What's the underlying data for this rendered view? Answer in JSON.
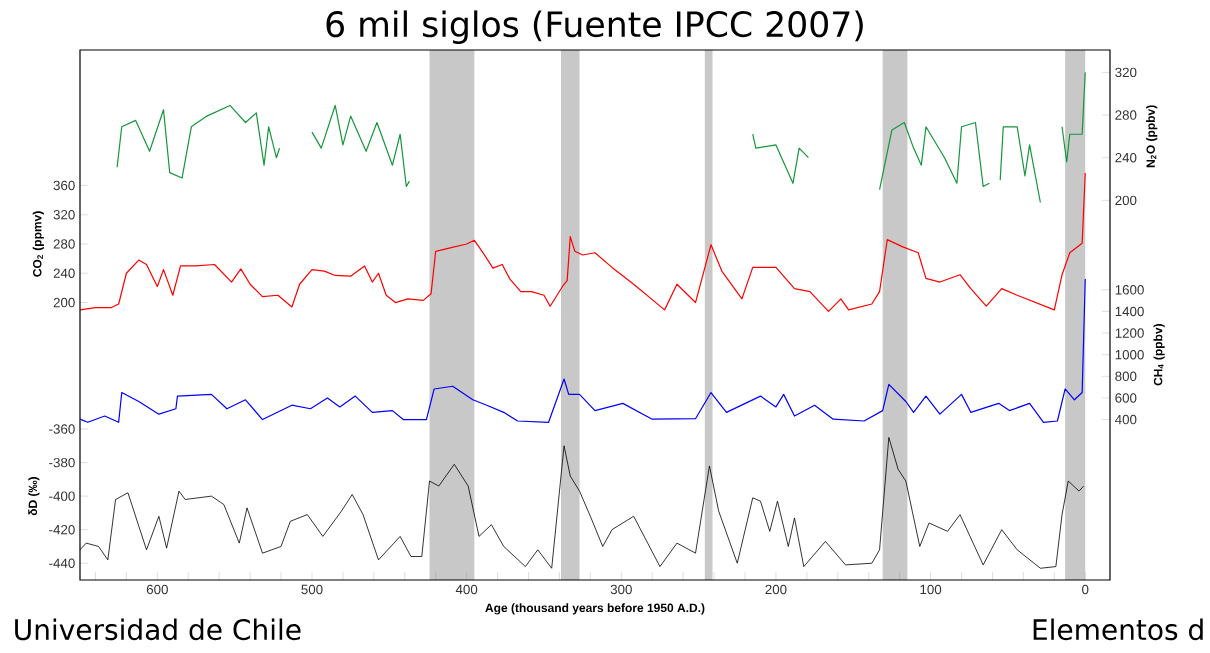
{
  "chart_data": [
    {
      "type": "line",
      "title": "6 mil siglos (Fuente IPCC 2007)",
      "y2label": "N$_{2}$O (ppbv)",
      "xlim": [
        650,
        -16
      ],
      "y2lim": [
        -156,
        341
      ],
      "y2ticks": [
        200,
        240,
        280,
        320
      ],
      "tick_labels": "y",
      "bands": [
        {
          "axis": "x",
          "from": 424,
          "to": 395,
          "color": "#c8c8c8"
        },
        {
          "axis": "x",
          "from": 339,
          "to": 327,
          "color": "#c8c8c8"
        },
        {
          "axis": "x",
          "from": 246,
          "to": 241,
          "color": "#c8c8c8"
        },
        {
          "axis": "x",
          "from": 131,
          "to": 115,
          "color": "#c8c8c8"
        },
        {
          "axis": "x",
          "from": 13,
          "to": 0,
          "color": "#c8c8c8"
        }
      ],
      "series": [
        {
          "color": "#15973c",
          "axis": "y2",
          "x": [
            626,
            623,
            614,
            605,
            596,
            592,
            584,
            578,
            568,
            553,
            543,
            536,
            531,
            528,
            523,
            521,
            510,
            500,
            494,
            485,
            480,
            475,
            465,
            458,
            448,
            443,
            439,
            437,
            300,
            215,
            213,
            200,
            189,
            185,
            179,
            150,
            133,
            125,
            117,
            111,
            106,
            103,
            91,
            83,
            80,
            71,
            66,
            62,
            58,
            55,
            53,
            44,
            39,
            36,
            29,
            20,
            15,
            12,
            10,
            2,
            0
          ],
          "values": [
            231,
            269,
            275,
            246,
            285,
            226,
            221,
            269,
            279,
            289,
            273,
            282,
            233,
            269,
            240,
            249,
            null,
            264,
            249,
            289,
            252,
            279,
            246,
            273,
            233,
            262,
            213,
            218,
            null,
            262,
            249,
            252,
            216,
            249,
            240,
            null,
            210,
            266,
            273,
            249,
            233,
            269,
            240,
            216,
            269,
            273,
            213,
            216,
            null,
            219,
            269,
            269,
            223,
            252,
            198,
            null,
            269,
            236,
            262,
            262,
            320
          ]
        }
      ]
    },
    {
      "type": "line",
      "ylabel": "CO$_{2}$ (ppmv)",
      "xlim": [
        650,
        -16
      ],
      "ylim": [
        -179,
        545
      ],
      "yticks": [
        200,
        240,
        280,
        320,
        360
      ],
      "tick_labels": "y",
      "series": [
        {
          "color": "#ff0000",
          "x": [
            650,
            640,
            630,
            625,
            620,
            612,
            607,
            600,
            596,
            590,
            585,
            575,
            563,
            552,
            546,
            540,
            532,
            522,
            513,
            508,
            500,
            492,
            485,
            475,
            466,
            461,
            457,
            452,
            446,
            438,
            428,
            423,
            420,
            410,
            400,
            395,
            390,
            383,
            377,
            372,
            365,
            358,
            350,
            346,
            338,
            335,
            333,
            330,
            325,
            317,
            306,
            292,
            272,
            264,
            252,
            242,
            235,
            222,
            215,
            200,
            188,
            178,
            166,
            158,
            153,
            138,
            133,
            128,
            118,
            108,
            103,
            94,
            81,
            74,
            64,
            54,
            44,
            32,
            20,
            15,
            10,
            2,
            0
          ],
          "values": [
            190,
            193,
            193,
            198,
            240,
            258,
            252,
            222,
            245,
            210,
            250,
            250,
            252,
            228,
            246,
            225,
            208,
            210,
            194,
            225,
            245,
            243,
            237,
            236,
            250,
            228,
            240,
            210,
            200,
            205,
            203,
            212,
            270,
            275,
            280,
            285,
            270,
            247,
            252,
            232,
            215,
            215,
            210,
            195,
            222,
            230,
            290,
            270,
            265,
            268,
            248,
            225,
            190,
            225,
            200,
            279,
            243,
            205,
            248,
            248,
            219,
            215,
            188,
            205,
            190,
            198,
            215,
            286,
            276,
            268,
            233,
            228,
            238,
            219,
            195,
            219,
            210,
            200,
            190,
            238,
            268,
            281,
            377
          ]
        }
      ]
    },
    {
      "type": "line",
      "y2label": "CH$_{4}$ (ppbv)",
      "xlim": [
        650,
        -16
      ],
      "y2lim": [
        -1083,
        3817
      ],
      "y2ticks": [
        400,
        600,
        800,
        1000,
        1200,
        1400,
        1600
      ],
      "tick_labels": "y",
      "series": [
        {
          "color": "#0000ff",
          "axis": "y2",
          "x": [
            650,
            645,
            634,
            625,
            623,
            612,
            599,
            588,
            587,
            565,
            555,
            543,
            532,
            513,
            501,
            490,
            482,
            472,
            461,
            448,
            441,
            426,
            421,
            409,
            396,
            387,
            376,
            367,
            347,
            337,
            334,
            327,
            317,
            299,
            280,
            252,
            242,
            232,
            210,
            200,
            195,
            188,
            175,
            163,
            143,
            131,
            127,
            116,
            111,
            103,
            94,
            80,
            74,
            56,
            49,
            36,
            27,
            18,
            13,
            7,
            2,
            0
          ],
          "values": [
            404,
            375,
            433,
            375,
            650,
            567,
            450,
            500,
            617,
            633,
            500,
            583,
            400,
            533,
            500,
            600,
            517,
            617,
            467,
            483,
            400,
            400,
            683,
            708,
            583,
            533,
            467,
            387,
            375,
            775,
            633,
            633,
            483,
            550,
            404,
            408,
            650,
            467,
            617,
            517,
            633,
            433,
            533,
            404,
            387,
            483,
            725,
            567,
            467,
            617,
            450,
            633,
            467,
            550,
            483,
            550,
            375,
            387,
            683,
            583,
            650,
            1700
          ]
        }
      ]
    },
    {
      "type": "line",
      "ylabel": "δD (‰)",
      "xlabel": "Age (thousand years before 1950 A.D.)",
      "xlim": [
        650,
        -16
      ],
      "ylim": [
        -450,
        -134
      ],
      "yticks": [
        -440,
        -420,
        -400,
        -380,
        -360
      ],
      "xticks": [
        {
          "value": 640,
          "label": null
        },
        {
          "value": 620,
          "label": null
        },
        600,
        {
          "value": 580,
          "label": null
        },
        {
          "value": 560,
          "label": null
        },
        {
          "value": 540,
          "label": null
        },
        {
          "value": 520,
          "label": null
        },
        500,
        {
          "value": 480,
          "label": null
        },
        {
          "value": 460,
          "label": null
        },
        {
          "value": 440,
          "label": null
        },
        {
          "value": 420,
          "label": null
        },
        400,
        {
          "value": 380,
          "label": null
        },
        {
          "value": 360,
          "label": null
        },
        {
          "value": 340,
          "label": null
        },
        {
          "value": 320,
          "label": null
        },
        300,
        {
          "value": 280,
          "label": null
        },
        {
          "value": 260,
          "label": null
        },
        {
          "value": 240,
          "label": null
        },
        {
          "value": 220,
          "label": null
        },
        200,
        {
          "value": 180,
          "label": null
        },
        {
          "value": 160,
          "label": null
        },
        {
          "value": 140,
          "label": null
        },
        {
          "value": 120,
          "label": null
        },
        100,
        {
          "value": 80,
          "label": null
        },
        {
          "value": 60,
          "label": null
        },
        {
          "value": 40,
          "label": null
        },
        {
          "value": 20,
          "label": null
        },
        0
      ],
      "annotations": [
        "Universidad de Chile",
        "Elementos d"
      ],
      "series": [
        {
          "color": "#000000",
          "x": [
            650,
            646,
            638,
            632,
            627,
            619,
            613,
            607,
            599,
            594,
            586,
            582,
            565,
            557,
            547,
            542,
            532,
            520,
            514,
            503,
            493,
            481,
            474,
            467,
            457,
            443,
            436,
            429,
            424,
            418,
            408,
            399,
            392,
            384,
            376,
            362,
            354,
            345,
            337,
            333,
            327,
            320,
            312,
            306,
            292,
            275,
            264,
            252,
            243,
            237,
            225,
            215,
            210,
            204,
            199,
            192,
            188,
            182,
            168,
            155,
            138,
            133,
            127,
            121,
            116,
            107,
            101,
            89,
            81,
            66,
            54,
            44,
            29,
            19,
            15,
            11,
            4,
            1
          ],
          "values": [
            -432,
            -428,
            -430,
            -438,
            -402,
            -398,
            -415,
            -432,
            -412,
            -431,
            -397,
            -402,
            -400,
            -405,
            -428,
            -407,
            -434,
            -430,
            -415,
            -411,
            -424,
            -409,
            -399,
            -411,
            -438,
            -424,
            -436,
            -436,
            -391,
            -394,
            -381,
            -394,
            -424,
            -417,
            -430,
            -442,
            -432,
            -443,
            -370,
            -388,
            -397,
            -412,
            -430,
            -420,
            -412,
            -442,
            -428,
            -434,
            -382,
            -409,
            -440,
            -401,
            -403,
            -421,
            -403,
            -430,
            -413,
            -442,
            -427,
            -441,
            -440,
            -432,
            -365,
            -384,
            -391,
            -430,
            -416,
            -421,
            -411,
            -441,
            -420,
            -432,
            -443,
            -442,
            -411,
            -391,
            -397,
            -394
          ]
        }
      ]
    }
  ]
}
